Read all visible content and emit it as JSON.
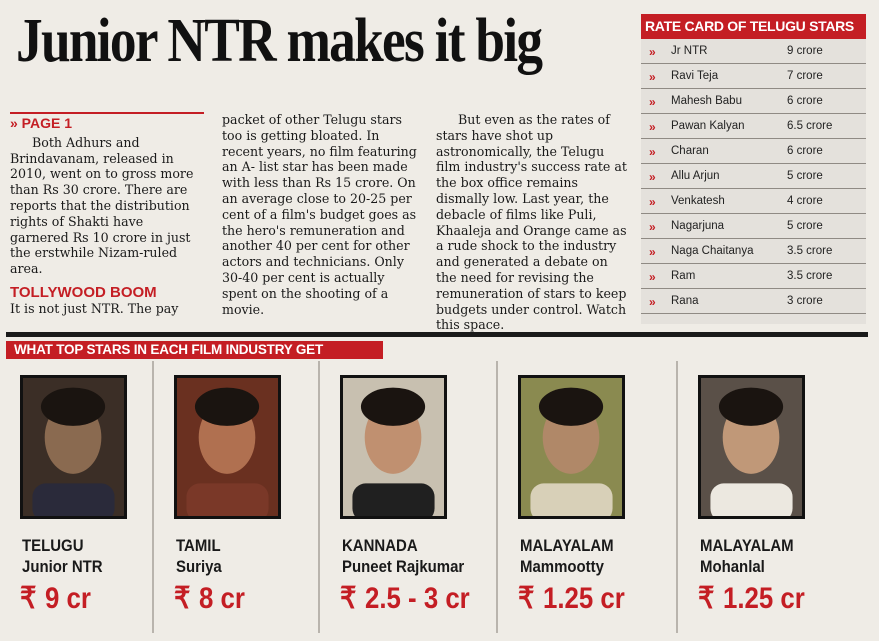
{
  "headline": "Junior NTR makes it big",
  "article": {
    "page_ref": "» PAGE 1",
    "para1": "Both Adhurs and Brindavanam, released in 2010, went on to gross more than Rs 30 crore. There are reports that the distribution rights of Shakti have garnered Rs 10 crore in just the erstwhile Nizam-ruled area.",
    "subhead": "TOLLYWOOD BOOM",
    "para2": "It is not just NTR. The pay",
    "col2": "packet of other Telugu stars too is getting bloated. In recent years, no film featuring an A- list star has been made with less than Rs 15 crore. On an average close to 20-25 per cent of a film's budget goes as the hero's remuneration and another 40 per cent for other actors and technicians. Only 30-40 per cent is actually spent on the shooting of a movie.",
    "col3": "But even as the rates of stars have shot up astronomically, the Telugu film industry's success rate at the box office remains dismally low. Last year, the debacle of films like Puli, Khaaleja and Orange came as a rude shock to the industry and generated a debate on the need for revising the remuneration of stars to keep budgets under control. Watch this space."
  },
  "rate_card": {
    "title": "RATE CARD OF TELUGU STARS",
    "arrow": "»",
    "rows": [
      {
        "name": "Jr NTR",
        "rate": "9 crore"
      },
      {
        "name": "Ravi Teja",
        "rate": "7 crore"
      },
      {
        "name": "Mahesh Babu",
        "rate": "6 crore"
      },
      {
        "name": "Pawan Kalyan",
        "rate": "6.5 crore"
      },
      {
        "name": "Charan",
        "rate": "6 crore"
      },
      {
        "name": "Allu Arjun",
        "rate": "5 crore"
      },
      {
        "name": "Venkatesh",
        "rate": "4 crore"
      },
      {
        "name": "Nagarjuna",
        "rate": "5 crore"
      },
      {
        "name": "Naga Chaitanya",
        "rate": "3.5 crore"
      },
      {
        "name": "Ram",
        "rate": "3.5 crore"
      },
      {
        "name": "Rana",
        "rate": "3 crore"
      }
    ]
  },
  "stars_section": {
    "title": "WHAT TOP STARS IN EACH FILM INDUSTRY GET",
    "rupee": "₹",
    "stars": [
      {
        "industry": "TELUGU",
        "name": "Junior NTR",
        "fee": "9 cr"
      },
      {
        "industry": "TAMIL",
        "name": "Suriya",
        "fee": "8 cr"
      },
      {
        "industry": "KANNADA",
        "name": "Puneet Rajkumar",
        "fee": "2.5 - 3 cr"
      },
      {
        "industry": "MALAYALAM",
        "name": "Mammootty",
        "fee": "1.25 cr"
      },
      {
        "industry": "MALAYALAM",
        "name": "Mohanlal",
        "fee": "1.25 cr"
      }
    ]
  },
  "colors": {
    "accent": "#c41e24",
    "paper": "#efece6"
  }
}
